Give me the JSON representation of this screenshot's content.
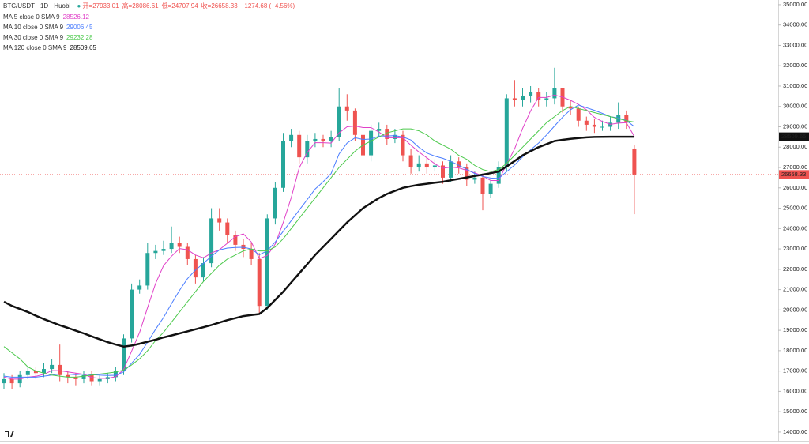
{
  "chart_data": {
    "type": "candlestick",
    "title": "BTC/USDT · 1D · Huobi",
    "ohlc_labels": [
      "开=",
      "高=",
      "低=",
      "收="
    ],
    "change_label": "−1274.68 (−4.56%)",
    "up_color": "#26a69a",
    "down_color": "#ef5350",
    "candles": {
      "open": [
        16400,
        16600,
        16400,
        16800,
        17000,
        16900,
        17100,
        17300,
        16800,
        16700,
        16600,
        16800,
        16500,
        16600,
        16700,
        17000,
        18600,
        21000,
        21200,
        22800,
        22900,
        23000,
        23300,
        23100,
        22500,
        21600,
        22300,
        24500,
        24300,
        23700,
        23200,
        23000,
        22500,
        20200,
        24500,
        26000,
        28300,
        28600,
        27500,
        28300,
        28400,
        28300,
        28500,
        30000,
        29800,
        28600,
        27600,
        28800,
        28900,
        28400,
        28600,
        27600,
        27000,
        27200,
        27000,
        27100,
        26500,
        27300,
        27000,
        26400,
        26500,
        25700,
        26200,
        27000,
        30400,
        30300,
        30500,
        30700,
        30300,
        30400,
        30900,
        30000,
        29900,
        29300,
        29100,
        29000,
        29000,
        29200,
        29600,
        27933.01
      ],
      "high": [
        16900,
        16800,
        17000,
        17200,
        17200,
        17400,
        17600,
        18300,
        17000,
        16900,
        17000,
        17000,
        16800,
        16900,
        17200,
        18800,
        21300,
        21500,
        23300,
        23200,
        23400,
        24100,
        23600,
        23300,
        22700,
        22600,
        25000,
        25000,
        24500,
        23900,
        23500,
        23300,
        22800,
        24700,
        26300,
        28700,
        28900,
        28800,
        28600,
        28700,
        28600,
        28800,
        30900,
        30600,
        29900,
        28800,
        29100,
        29200,
        29100,
        28900,
        28800,
        27900,
        27600,
        27500,
        27400,
        27300,
        27600,
        27500,
        27200,
        26800,
        26700,
        26400,
        27300,
        30600,
        31300,
        30900,
        31000,
        30900,
        30700,
        31900,
        30900,
        30300,
        30000,
        29500,
        29400,
        29300,
        29500,
        30200,
        29800,
        28086.61
      ],
      "low": [
        16100,
        16100,
        16200,
        16600,
        16600,
        16700,
        16900,
        16500,
        16400,
        16300,
        16400,
        16300,
        16300,
        16400,
        16500,
        16800,
        18400,
        20800,
        21000,
        22500,
        22700,
        22800,
        22800,
        22200,
        21300,
        21400,
        22100,
        23900,
        23300,
        22900,
        22600,
        22200,
        19800,
        20000,
        24200,
        25800,
        28000,
        27200,
        27200,
        28000,
        28000,
        28000,
        28300,
        29300,
        28300,
        27200,
        27300,
        28500,
        28100,
        28200,
        27300,
        26700,
        26800,
        26700,
        26800,
        26200,
        26300,
        26700,
        26100,
        26200,
        24900,
        25500,
        26000,
        26800,
        30000,
        30000,
        30200,
        30000,
        30000,
        30100,
        29700,
        29600,
        29000,
        28800,
        28700,
        28800,
        28800,
        28900,
        28900,
        24707.94
      ],
      "close": [
        16600,
        16400,
        16800,
        17000,
        16900,
        17100,
        17300,
        16800,
        16700,
        16600,
        16800,
        16500,
        16600,
        16700,
        17000,
        18600,
        21000,
        21200,
        22800,
        22900,
        23000,
        23300,
        23100,
        22500,
        21600,
        22300,
        24500,
        24300,
        23700,
        23200,
        23000,
        22500,
        20200,
        24500,
        26000,
        28300,
        28600,
        27500,
        28300,
        28400,
        28300,
        28500,
        30000,
        29800,
        28600,
        27600,
        28800,
        28900,
        28400,
        28600,
        27600,
        27000,
        27200,
        27000,
        27100,
        26500,
        27300,
        27000,
        26400,
        26500,
        25700,
        26200,
        27000,
        30400,
        30300,
        30500,
        30700,
        30300,
        30400,
        30900,
        30000,
        29900,
        29300,
        29100,
        29000,
        29000,
        29200,
        29600,
        29200,
        26658.33
      ]
    },
    "series": [
      {
        "name": "MA 5 close 0 SMA 9",
        "color": "#e040c8",
        "width": 1,
        "values": [
          16700,
          16600,
          16600,
          16700,
          16740,
          16840,
          17020,
          17020,
          16960,
          16900,
          16840,
          16680,
          16640,
          16640,
          16720,
          17080,
          17980,
          18900,
          20120,
          21300,
          22180,
          22640,
          23020,
          22960,
          22700,
          22560,
          22800,
          22960,
          23280,
          23600,
          23740,
          23340,
          22520,
          22680,
          23240,
          24300,
          25520,
          26980,
          27740,
          28220,
          28220,
          28200,
          28700,
          29000,
          29040,
          28960,
          28960,
          28740,
          28460,
          28460,
          28460,
          28100,
          27760,
          27480,
          27180,
          26960,
          27020,
          26980,
          26860,
          26740,
          26580,
          26360,
          26360,
          27160,
          27920,
          28920,
          29780,
          30440,
          30440,
          30560,
          30460,
          30300,
          30100,
          29840,
          29460,
          29260,
          29120,
          29180,
          29200,
          28526.12
        ]
      },
      {
        "name": "MA 10 close 0 SMA 9",
        "color": "#4a7dff",
        "width": 1,
        "values": [
          16750,
          16700,
          16700,
          16700,
          16700,
          16750,
          16800,
          16850,
          16850,
          16820,
          16850,
          16820,
          16800,
          16780,
          16790,
          16960,
          17380,
          17820,
          18420,
          19050,
          19630,
          20310,
          20960,
          21540,
          21960,
          22290,
          22640,
          22950,
          23040,
          23070,
          23080,
          23000,
          22710,
          22910,
          23340,
          23870,
          24390,
          24910,
          25420,
          25940,
          26300,
          26700,
          27670,
          28200,
          28460,
          28380,
          28400,
          28540,
          28550,
          28570,
          28500,
          28350,
          27990,
          27710,
          27560,
          27450,
          27300,
          27110,
          26910,
          26700,
          26560,
          26480,
          26460,
          26800,
          27120,
          27520,
          27870,
          28200,
          28600,
          29040,
          29470,
          29840,
          30070,
          29940,
          29810,
          29660,
          29500,
          29430,
          29310,
          29006.45
        ]
      },
      {
        "name": "MA 30 close 0 SMA 9",
        "color": "#4cc94c",
        "width": 1,
        "values": [
          18200,
          17900,
          17600,
          17200,
          17000,
          16900,
          16800,
          16750,
          16700,
          16700,
          16750,
          16800,
          16850,
          16900,
          16950,
          17050,
          17300,
          17600,
          18000,
          18500,
          18900,
          19400,
          19900,
          20400,
          20900,
          21400,
          21800,
          22200,
          22500,
          22700,
          22900,
          23000,
          22900,
          22900,
          23100,
          23500,
          24000,
          24500,
          25000,
          25500,
          26000,
          26500,
          27000,
          27400,
          27800,
          28100,
          28300,
          28500,
          28700,
          28800,
          28900,
          28900,
          28800,
          28600,
          28300,
          28100,
          27900,
          27600,
          27400,
          27100,
          26900,
          26800,
          26900,
          27200,
          27600,
          28000,
          28400,
          28800,
          29200,
          29500,
          29800,
          30000,
          29900,
          29800,
          29700,
          29600,
          29500,
          29400,
          29300,
          29232.28
        ]
      },
      {
        "name": "MA 120 close 0 SMA 9",
        "color": "#111111",
        "width": 2.5,
        "values": [
          20400,
          20200,
          20050,
          19900,
          19720,
          19550,
          19400,
          19250,
          19120,
          18980,
          18850,
          18700,
          18560,
          18420,
          18300,
          18200,
          18250,
          18340,
          18440,
          18540,
          18650,
          18750,
          18850,
          18950,
          19050,
          19150,
          19260,
          19380,
          19500,
          19600,
          19700,
          19750,
          19800,
          20100,
          20500,
          20900,
          21350,
          21800,
          22250,
          22700,
          23100,
          23500,
          23900,
          24300,
          24650,
          25000,
          25250,
          25500,
          25700,
          25850,
          26000,
          26080,
          26150,
          26200,
          26250,
          26300,
          26370,
          26440,
          26510,
          26580,
          26650,
          26720,
          26800,
          27050,
          27320,
          27600,
          27800,
          28000,
          28150,
          28300,
          28360,
          28410,
          28450,
          28480,
          28500,
          28505,
          28510,
          28510,
          28510,
          28509.65
        ]
      }
    ],
    "ylim": [
      13570,
      35230
    ],
    "yticks": [
      {
        "value": 14000,
        "label": "14000.00"
      },
      {
        "value": 15000,
        "label": "15000.00"
      },
      {
        "value": 16000,
        "label": "16000.00"
      },
      {
        "value": 17000,
        "label": "17000.00"
      },
      {
        "value": 18000,
        "label": "18000.00"
      },
      {
        "value": 19000,
        "label": "19000.00"
      },
      {
        "value": 20000,
        "label": "20000.00"
      },
      {
        "value": 21000,
        "label": "21000.00"
      },
      {
        "value": 22000,
        "label": "22000.00"
      },
      {
        "value": 23000,
        "label": "23000.00"
      },
      {
        "value": 24000,
        "label": "24000.00"
      },
      {
        "value": 25000,
        "label": "25000.00"
      },
      {
        "value": 26000,
        "label": "26000.00"
      },
      {
        "value": 27000,
        "label": "27000.00"
      },
      {
        "value": 28000,
        "label": "28000.00"
      },
      {
        "value": 29000,
        "label": "29000.00"
      },
      {
        "value": 30000,
        "label": "30000.00"
      },
      {
        "value": 31000,
        "label": "31000.00"
      },
      {
        "value": 32000,
        "label": "32000.00"
      },
      {
        "value": 33000,
        "label": "33000.00"
      },
      {
        "value": 34000,
        "label": "34000.00"
      },
      {
        "value": 35000,
        "label": "35000.00"
      }
    ]
  }
}
